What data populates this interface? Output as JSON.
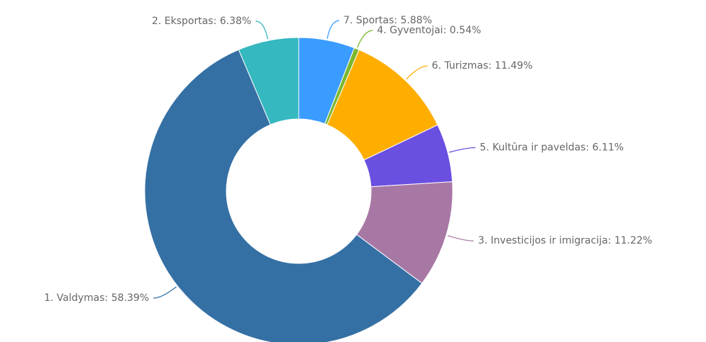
{
  "chart_data": {
    "type": "donut",
    "labels": [
      "7. Sportas: 5.88%",
      "4. Gyventojai: 0.54%",
      "6. Turizmas: 11.49%",
      "5. Kultūra ir paveldas: 6.11%",
      "3. Investicijos ir imigracija: 11.22%",
      "1. Valdymas: 58.39%",
      "2. Eksportas: 6.38%"
    ],
    "values": [
      5.88,
      0.54,
      11.49,
      6.11,
      11.22,
      58.39,
      6.38
    ],
    "colors": [
      "#3a9cff",
      "#7cb82f",
      "#ffae00",
      "#6a4fe0",
      "#a878a5",
      "#3570a4",
      "#35b8c0"
    ]
  }
}
